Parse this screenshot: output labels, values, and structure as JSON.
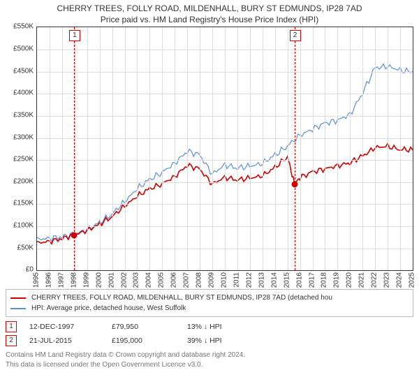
{
  "title_line1": "CHERRY TREES, FOLLY ROAD, MILDENHALL, BURY ST EDMUNDS, IP28 7AD",
  "title_line2": "Price paid vs. HM Land Registry's House Price Index (HPI)",
  "y_axis": {
    "min_val": 0,
    "max_val": 550000,
    "step": 50000,
    "labels": [
      "£0",
      "£50K",
      "£100K",
      "£150K",
      "£200K",
      "£250K",
      "£300K",
      "£350K",
      "£400K",
      "£450K",
      "£500K",
      "£550K"
    ]
  },
  "x_axis": {
    "min_year": 1995,
    "max_year": 2025,
    "labels": [
      "1995",
      "1996",
      "1997",
      "1998",
      "1999",
      "2000",
      "2001",
      "2002",
      "2003",
      "2004",
      "2005",
      "2006",
      "2007",
      "2008",
      "2009",
      "2010",
      "2011",
      "2012",
      "2013",
      "2014",
      "2015",
      "2016",
      "2017",
      "2018",
      "2019",
      "2020",
      "2021",
      "2022",
      "2023",
      "2024",
      "2025"
    ]
  },
  "colors": {
    "series_hpi": "#5b8fd6",
    "series_property": "#cc0000",
    "grid": "#dddddd",
    "axis": "#333333",
    "event_line": "#cc0000",
    "text": "#333333",
    "muted_text": "#777777"
  },
  "line_widths": {
    "hpi": 1.2,
    "property": 1.6
  },
  "series_hpi": {
    "years": [
      1995,
      1996,
      1997,
      1998,
      1999,
      2000,
      2001,
      2002,
      2003,
      2004,
      2005,
      2006,
      2007,
      2008,
      2009,
      2010,
      2011,
      2012,
      2013,
      2014,
      2015,
      2016,
      2017,
      2018,
      2019,
      2020,
      2021,
      2022,
      2023,
      2024,
      2025
    ],
    "values": [
      70000,
      72000,
      76000,
      82000,
      92000,
      108000,
      128000,
      155000,
      185000,
      205000,
      222000,
      242000,
      270000,
      260000,
      218000,
      238000,
      232000,
      235000,
      242000,
      260000,
      282000,
      305000,
      320000,
      332000,
      340000,
      352000,
      402000,
      458000,
      462000,
      452000,
      450000
    ]
  },
  "series_property": {
    "years": [
      1995,
      1996,
      1997,
      1998,
      1999,
      2000,
      2001,
      2002,
      2003,
      2004,
      2005,
      2006,
      2007,
      2008,
      2009,
      2010,
      2011,
      2012,
      2013,
      2014,
      2015,
      2015.55,
      2016,
      2017,
      2018,
      2019,
      2020,
      2021,
      2022,
      2023,
      2024,
      2025
    ],
    "values": [
      62000,
      65000,
      72000,
      79950,
      90000,
      104000,
      122000,
      145000,
      168000,
      184000,
      196000,
      212000,
      238000,
      228000,
      195000,
      210000,
      205000,
      208000,
      214000,
      232000,
      258000,
      195000,
      210000,
      222000,
      230000,
      236000,
      244000,
      258000,
      278000,
      280000,
      274000,
      272000
    ]
  },
  "events": [
    {
      "marker": "1",
      "year": 1997.95,
      "value": 79950,
      "date": "12-DEC-1997",
      "price": "£79,950",
      "delta": "13% ↓ HPI"
    },
    {
      "marker": "2",
      "year": 2015.55,
      "value": 195000,
      "date": "21-JUL-2015",
      "price": "£195,000",
      "delta": "39% ↓ HPI"
    }
  ],
  "legend": {
    "row1": "CHERRY TREES, FOLLY ROAD, MILDENHALL, BURY ST EDMUNDS, IP28 7AD (detached hou",
    "row2": "HPI: Average price, detached house, West Suffolk"
  },
  "footer": {
    "line1": "Contains HM Land Registry data © Crown copyright and database right 2024.",
    "line2": "This data is licensed under the Open Government Licence v3.0."
  }
}
